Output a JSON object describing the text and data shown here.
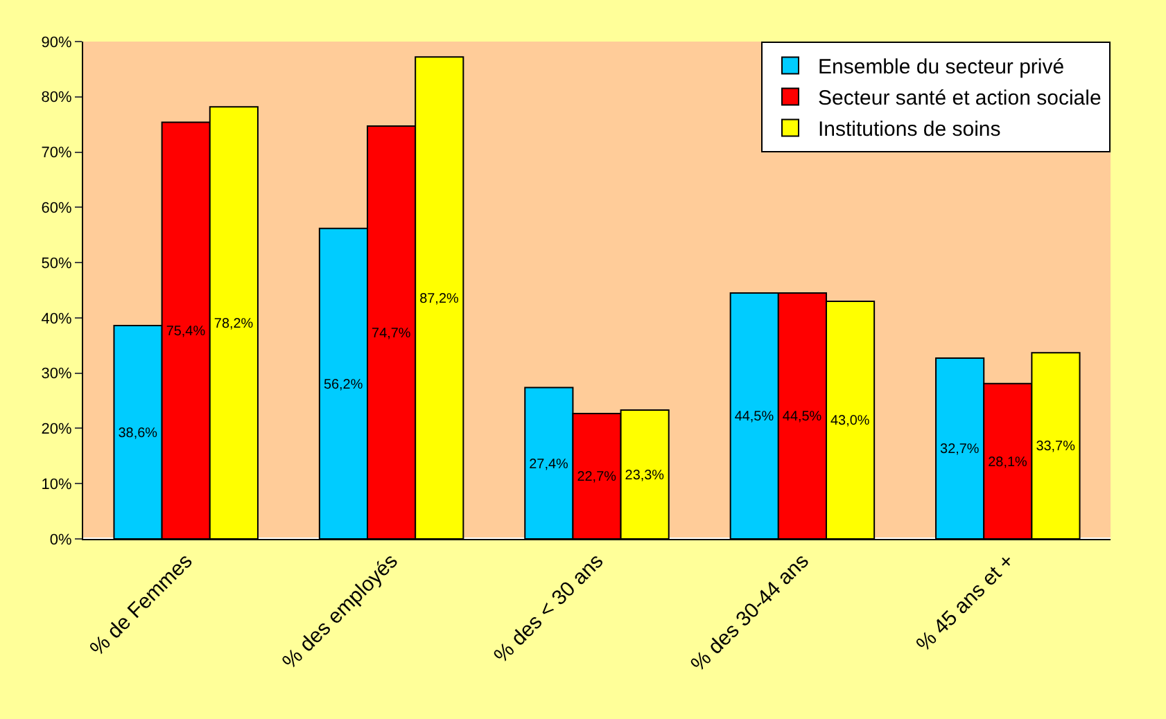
{
  "chart_data": {
    "type": "bar",
    "categories": [
      "% de Femmes",
      "% des employés",
      "% des < 30 ans",
      "% des 30-44 ans",
      "% 45 ans et +"
    ],
    "series": [
      {
        "name": "Ensemble du secteur privé",
        "color": "#00ccff",
        "values": [
          38.6,
          56.2,
          27.4,
          44.5,
          32.7
        ],
        "value_labels": [
          "38,6%",
          "56,2%",
          "27,4%",
          "44,5%",
          "32,7%"
        ]
      },
      {
        "name": "Secteur santé et action sociale",
        "color": "#ff0000",
        "values": [
          75.4,
          74.7,
          22.7,
          44.5,
          28.1
        ],
        "value_labels": [
          "75,4%",
          "74,7%",
          "22,7%",
          "44,5%",
          "28,1%"
        ]
      },
      {
        "name": "Institutions de soins",
        "color": "#ffff00",
        "values": [
          78.2,
          87.2,
          23.3,
          43.0,
          33.7
        ],
        "value_labels": [
          "78,2%",
          "87,2%",
          "23,3%",
          "43,0%",
          "33,7%"
        ]
      }
    ],
    "ylim": [
      0,
      90
    ],
    "yticks": [
      {
        "value": 0,
        "label": "0%"
      },
      {
        "value": 10,
        "label": "10%"
      },
      {
        "value": 20,
        "label": "20%"
      },
      {
        "value": 30,
        "label": "30%"
      },
      {
        "value": 40,
        "label": "40%"
      },
      {
        "value": 50,
        "label": "50%"
      },
      {
        "value": 60,
        "label": "60%"
      },
      {
        "value": 70,
        "label": "70%"
      },
      {
        "value": 80,
        "label": "80%"
      },
      {
        "value": 90,
        "label": "90%"
      }
    ],
    "grid": false,
    "legend": "top right"
  }
}
